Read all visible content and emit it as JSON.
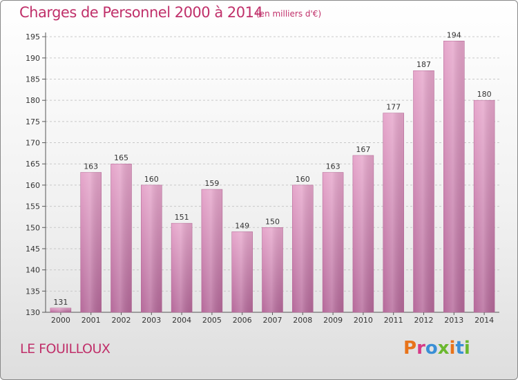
{
  "header": {
    "title": "Charges de Personnel 2000 à 2014",
    "subtitle": "(en milliers d'€)"
  },
  "footer": {
    "commune": "LE FOUILLOUX",
    "logo_text": "Proxiti",
    "logo_colors": [
      "#e8731a",
      "#d63a86",
      "#3a8fd6",
      "#6ab82e",
      "#e8731a",
      "#3a8fd6",
      "#6ab82e"
    ]
  },
  "chart_data": {
    "type": "bar",
    "categories": [
      "2000",
      "2001",
      "2002",
      "2003",
      "2004",
      "2005",
      "2006",
      "2007",
      "2008",
      "2009",
      "2010",
      "2011",
      "2012",
      "2013",
      "2014"
    ],
    "values": [
      131,
      163,
      165,
      160,
      151,
      159,
      149,
      150,
      160,
      163,
      167,
      177,
      187,
      194,
      180
    ],
    "ylim": [
      130,
      196
    ],
    "yticks": [
      130,
      135,
      140,
      145,
      150,
      155,
      160,
      165,
      170,
      175,
      180,
      185,
      190,
      195
    ],
    "grid": true,
    "bar_color": "#d98ab5"
  }
}
